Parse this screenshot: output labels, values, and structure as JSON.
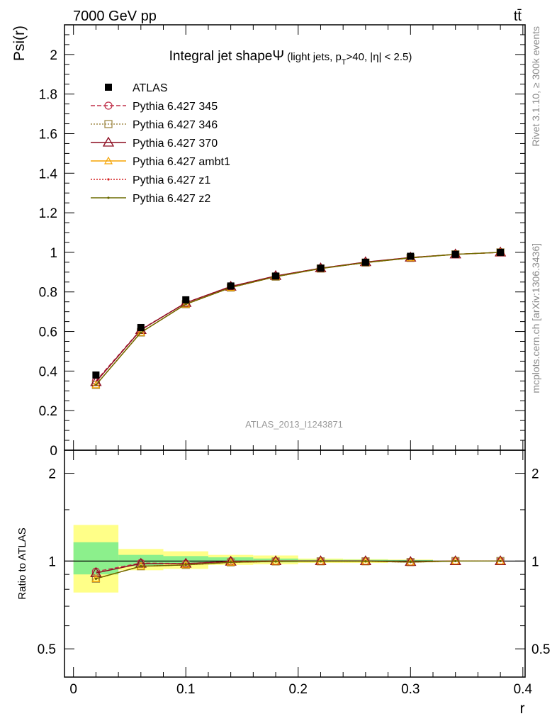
{
  "header": {
    "energy_label": "7000 GeV pp",
    "process_label": "tt̄"
  },
  "side_labels": {
    "rivet": "Rivet 3.1.10, ≥ 300k events",
    "mcplots": "mcplots.cern.ch [arXiv:1306.3436]"
  },
  "watermark": "ATLAS_2013_I1243871",
  "chart_data": [
    {
      "type": "line",
      "title": "Integral jet shape",
      "title_symbol": "Ψ",
      "title_cut_prefix": "(light jets, p",
      "title_cut_sub": "T",
      "title_cut_suffix": ">40, |η| < 2.5)",
      "xlabel": "r",
      "ylabel": "Psi(r)",
      "xlim": [
        -0.008,
        0.402
      ],
      "ylim": [
        0,
        2.15
      ],
      "yticks": [
        0,
        0.2,
        0.4,
        0.6,
        0.8,
        1,
        1.2,
        1.4,
        1.6,
        1.8,
        2
      ],
      "yticklabels": [
        "0",
        "0.2",
        "0.4",
        "0.6",
        "0.8",
        "1",
        "1.2",
        "1.4",
        "1.6",
        "1.8",
        "2"
      ],
      "x": [
        0.02,
        0.06,
        0.1,
        0.14,
        0.18,
        0.22,
        0.26,
        0.3,
        0.34,
        0.38
      ],
      "data": {
        "name": "ATLAS",
        "values": [
          0.38,
          0.62,
          0.76,
          0.83,
          0.88,
          0.92,
          0.95,
          0.98,
          0.99,
          1.0
        ]
      },
      "series": [
        {
          "name": "Pythia 6.427 345",
          "color": "#c0304a",
          "marker": "circle-open",
          "dash": "6,3",
          "values": [
            0.35,
            0.61,
            0.745,
            0.828,
            0.88,
            0.92,
            0.95,
            0.974,
            0.99,
            1.0
          ]
        },
        {
          "name": "Pythia 6.427 346",
          "color": "#a08a48",
          "marker": "square-open",
          "dash": "2,2",
          "values": [
            0.33,
            0.595,
            0.738,
            0.822,
            0.877,
            0.918,
            0.948,
            0.972,
            0.99,
            1.0
          ]
        },
        {
          "name": "Pythia 6.427 370",
          "color": "#8b0a1e",
          "marker": "triangle-open-large",
          "dash": "",
          "values": [
            0.345,
            0.608,
            0.745,
            0.827,
            0.881,
            0.92,
            0.951,
            0.974,
            0.99,
            1.0
          ]
        },
        {
          "name": "Pythia 6.427 ambt1",
          "color": "#f5a300",
          "marker": "triangle-open",
          "dash": "",
          "values": [
            0.33,
            0.595,
            0.738,
            0.822,
            0.877,
            0.918,
            0.948,
            0.972,
            0.99,
            1.0
          ]
        },
        {
          "name": "Pythia 6.427 z1",
          "color": "#d42020",
          "marker": "dot",
          "dash": "2,2",
          "values": [
            0.33,
            0.595,
            0.738,
            0.822,
            0.877,
            0.918,
            0.948,
            0.972,
            0.99,
            1.0
          ]
        },
        {
          "name": "Pythia 6.427 z2",
          "color": "#6b6b00",
          "marker": "dot",
          "dash": "",
          "values": [
            0.33,
            0.595,
            0.738,
            0.822,
            0.877,
            0.918,
            0.948,
            0.972,
            0.99,
            1.0
          ]
        }
      ]
    },
    {
      "type": "line",
      "ylabel": "Ratio to ATLAS",
      "xlabel": "r",
      "ylim": [
        0.4,
        2.4
      ],
      "log_y": true,
      "yticks": [
        0.5,
        1,
        2
      ],
      "yticklabels": [
        "0.5",
        "1",
        "2"
      ],
      "xticks": [
        0,
        0.1,
        0.2,
        0.3,
        0.4
      ],
      "xticklabels": [
        "0",
        "0.1",
        "0.2",
        "0.3",
        "0.4"
      ],
      "bands": [
        {
          "x0": 0.0,
          "x1": 0.04,
          "inner": [
            0.9,
            1.16
          ],
          "outer": [
            0.78,
            1.33
          ]
        },
        {
          "x0": 0.04,
          "x1": 0.08,
          "inner": [
            0.96,
            1.05
          ],
          "outer": [
            0.93,
            1.1
          ]
        },
        {
          "x0": 0.08,
          "x1": 0.12,
          "inner": [
            0.98,
            1.04
          ],
          "outer": [
            0.94,
            1.08
          ]
        },
        {
          "x0": 0.12,
          "x1": 0.16,
          "inner": [
            0.99,
            1.03
          ],
          "outer": [
            0.97,
            1.05
          ]
        },
        {
          "x0": 0.16,
          "x1": 0.2,
          "inner": [
            0.99,
            1.02
          ],
          "outer": [
            0.975,
            1.045
          ]
        },
        {
          "x0": 0.2,
          "x1": 0.24,
          "inner": [
            0.995,
            1.01
          ],
          "outer": [
            0.985,
            1.02
          ]
        },
        {
          "x0": 0.24,
          "x1": 0.28,
          "inner": [
            0.995,
            1.01
          ],
          "outer": [
            0.985,
            1.015
          ]
        },
        {
          "x0": 0.28,
          "x1": 0.32,
          "inner": [
            0.995,
            1.008
          ],
          "outer": [
            0.99,
            1.012
          ]
        },
        {
          "x0": 0.32,
          "x1": 0.36,
          "inner": [
            0.998,
            1.002
          ],
          "outer": [
            0.996,
            1.004
          ]
        },
        {
          "x0": 0.36,
          "x1": 0.4,
          "inner": [
            0.999,
            1.001
          ],
          "outer": [
            0.998,
            1.002
          ]
        }
      ],
      "series": [
        {
          "name": "Pythia 6.427 345",
          "values": [
            0.92,
            0.985,
            0.98,
            0.998,
            1.0,
            1.0,
            1.0,
            0.995,
            1.0,
            1.0
          ]
        },
        {
          "name": "Pythia 6.427 346",
          "values": [
            0.87,
            0.96,
            0.97,
            0.99,
            0.997,
            0.998,
            0.998,
            0.992,
            1.0,
            1.0
          ]
        },
        {
          "name": "Pythia 6.427 370",
          "values": [
            0.91,
            0.98,
            0.98,
            0.996,
            1.0,
            1.0,
            1.0,
            0.994,
            1.0,
            1.0
          ]
        },
        {
          "name": "Pythia 6.427 ambt1",
          "values": [
            0.87,
            0.96,
            0.97,
            0.99,
            0.997,
            0.998,
            0.998,
            0.992,
            1.0,
            1.0
          ]
        },
        {
          "name": "Pythia 6.427 z1",
          "values": [
            0.87,
            0.96,
            0.97,
            0.99,
            0.997,
            0.998,
            0.998,
            0.992,
            1.0,
            1.0
          ]
        },
        {
          "name": "Pythia 6.427 z2",
          "values": [
            0.87,
            0.96,
            0.97,
            0.99,
            0.997,
            0.998,
            0.998,
            0.992,
            1.0,
            1.0
          ]
        }
      ]
    }
  ]
}
